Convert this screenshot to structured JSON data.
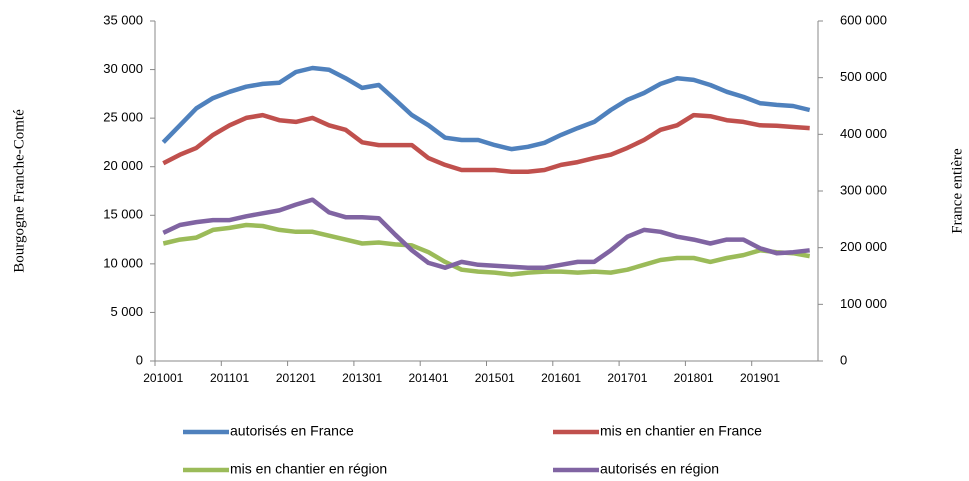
{
  "chart_data": {
    "type": "line",
    "y_label": "Bourgogne Franche-Comté",
    "y2_label": "France entière",
    "categories": [
      "201001",
      null,
      null,
      null,
      "201101",
      null,
      null,
      null,
      "201201",
      null,
      null,
      null,
      "201301",
      null,
      null,
      null,
      "201401",
      null,
      null,
      null,
      "201501",
      null,
      null,
      null,
      "201601",
      null,
      null,
      null,
      "201701",
      null,
      null,
      null,
      "201801",
      null,
      null,
      null,
      "201901",
      null,
      null,
      null
    ],
    "ylim": [
      0,
      35000
    ],
    "yticks": [
      {
        "value": 0,
        "label": "0"
      },
      {
        "value": 5000,
        "label": "5 000"
      },
      {
        "value": 10000,
        "label": "10 000"
      },
      {
        "value": 15000,
        "label": "15 000"
      },
      {
        "value": 20000,
        "label": "20 000"
      },
      {
        "value": 25000,
        "label": "25 000"
      },
      {
        "value": 30000,
        "label": "30 000"
      },
      {
        "value": 35000,
        "label": "35 000"
      }
    ],
    "y2lim": [
      0,
      600000
    ],
    "y2ticks": [
      {
        "value": 0,
        "label": "0"
      },
      {
        "value": 100000,
        "label": "100 000"
      },
      {
        "value": 200000,
        "label": "200 000"
      },
      {
        "value": 300000,
        "label": "300 000"
      },
      {
        "value": 400000,
        "label": "400 000"
      },
      {
        "value": 500000,
        "label": "500 000"
      },
      {
        "value": 600000,
        "label": "600 000"
      }
    ],
    "series": [
      {
        "name": "autorisés en France",
        "color": "#4f81bd",
        "axis": "y2",
        "values": [
          386000,
          416000,
          446000,
          464000,
          475000,
          484000,
          489000,
          491000,
          510000,
          517000,
          514000,
          499000,
          482000,
          487000,
          461000,
          434000,
          416000,
          394000,
          390000,
          390000,
          381000,
          374000,
          378000,
          385000,
          399000,
          411000,
          422000,
          443000,
          461000,
          473000,
          489000,
          499000,
          496000,
          487000,
          475000,
          466000,
          455000,
          452000,
          450000,
          443000
        ]
      },
      {
        "name": "mis en chantier en France",
        "color": "#c0504d",
        "axis": "y2",
        "values": [
          349000,
          364000,
          376000,
          399000,
          416000,
          429000,
          434000,
          425000,
          422000,
          429000,
          416000,
          408000,
          386000,
          381000,
          381000,
          381000,
          358000,
          346000,
          337000,
          337000,
          337000,
          334000,
          334000,
          337000,
          346000,
          351000,
          358000,
          364000,
          376000,
          390000,
          408000,
          416000,
          434000,
          432000,
          425000,
          422000,
          416000,
          415000,
          413000,
          411000
        ]
      },
      {
        "name": "mis en chantier en région",
        "color": "#9bbb59",
        "values": [
          12100,
          12500,
          12700,
          13500,
          13700,
          14000,
          13900,
          13500,
          13300,
          13300,
          12900,
          12500,
          12100,
          12200,
          12000,
          11900,
          11200,
          10200,
          9400,
          9200,
          9100,
          8900,
          9100,
          9200,
          9200,
          9100,
          9200,
          9100,
          9400,
          9900,
          10400,
          10600,
          10600,
          10200,
          10600,
          10900,
          11400,
          11200,
          11100,
          10800
        ]
      },
      {
        "name": "autorisés en région",
        "color": "#8064a2",
        "values": [
          13200,
          14000,
          14300,
          14500,
          14500,
          14900,
          15200,
          15500,
          16100,
          16600,
          15300,
          14800,
          14800,
          14700,
          13000,
          11400,
          10100,
          9600,
          10200,
          9900,
          9800,
          9700,
          9600,
          9600,
          9900,
          10200,
          10200,
          11400,
          12800,
          13500,
          13300,
          12800,
          12500,
          12100,
          12500,
          12500,
          11600,
          11100,
          11200,
          11400
        ]
      }
    ]
  }
}
